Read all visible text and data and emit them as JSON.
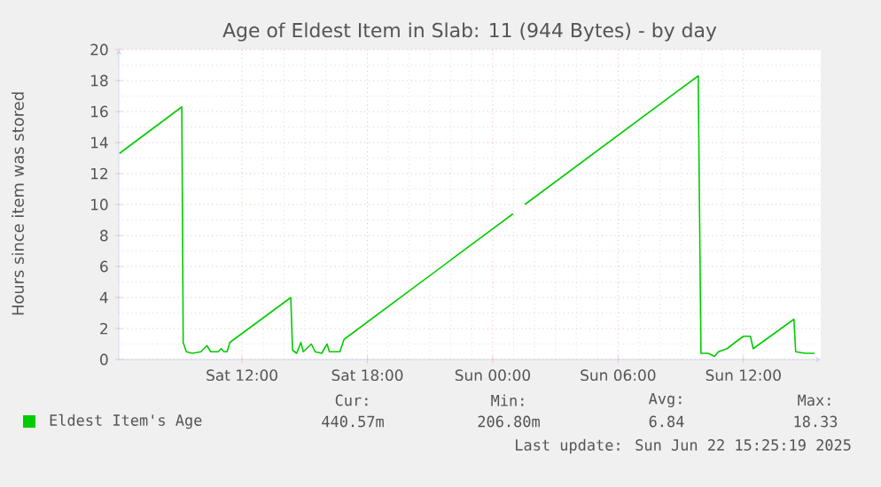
{
  "chart_data": {
    "type": "line",
    "title": "Age of Eldest Item in Slab: 11 (944 Bytes) - by day",
    "ylabel": "Hours since item was stored",
    "xlim": [
      "2025-06-21T06:06",
      "2025-06-22T15:42"
    ],
    "ylim": [
      0,
      20
    ],
    "xticks": [
      {
        "value": "2025-06-21T12:00",
        "label": "Sat 12:00"
      },
      {
        "value": "2025-06-21T18:00",
        "label": "Sat 18:00"
      },
      {
        "value": "2025-06-22T00:00",
        "label": "Sun 00:00"
      },
      {
        "value": "2025-06-22T06:00",
        "label": "Sun 06:00"
      },
      {
        "value": "2025-06-22T12:00",
        "label": "Sun 12:00"
      }
    ],
    "yticks": [
      0,
      2,
      4,
      6,
      8,
      10,
      12,
      14,
      16,
      18,
      20
    ],
    "grid": true,
    "legend": "bottom left",
    "marker": "none",
    "line_style": "solid",
    "series": [
      {
        "name": "Eldest Item's Age",
        "color": "#00cc00",
        "x": [
          "2025-06-21T06:08",
          "2025-06-21T09:07",
          "2025-06-21T09:11",
          "2025-06-21T09:20",
          "2025-06-21T09:37",
          "2025-06-21T10:02",
          "2025-06-21T10:19",
          "2025-06-21T10:30",
          "2025-06-21T10:52",
          "2025-06-21T11:00",
          "2025-06-21T11:08",
          "2025-06-21T11:17",
          "2025-06-21T11:25",
          "2025-06-21T14:20",
          "2025-06-21T14:25",
          "2025-06-21T14:37",
          "2025-06-21T14:49",
          "2025-06-21T14:56",
          "2025-06-21T15:19",
          "2025-06-21T15:30",
          "2025-06-21T15:49",
          "2025-06-21T16:04",
          "2025-06-21T16:11",
          "2025-06-21T16:41",
          "2025-06-21T16:53",
          "2025-06-22T00:58",
          "2025-06-22T01:12",
          "2025-06-22T01:32",
          "2025-06-22T09:50",
          "2025-06-22T09:58",
          "2025-06-22T10:19",
          "2025-06-22T10:37",
          "2025-06-22T10:48",
          "2025-06-22T11:13",
          "2025-06-22T11:30",
          "2025-06-22T12:00",
          "2025-06-22T12:20",
          "2025-06-22T12:28",
          "2025-06-22T14:25",
          "2025-06-22T14:30",
          "2025-06-22T14:58",
          "2025-06-22T15:24"
        ],
        "values": [
          13.3,
          16.3,
          1.1,
          0.5,
          0.4,
          0.5,
          0.9,
          0.5,
          0.5,
          0.7,
          0.5,
          0.5,
          1.1,
          4.0,
          0.6,
          0.4,
          1.1,
          0.5,
          1.0,
          0.5,
          0.4,
          1.0,
          0.5,
          0.5,
          1.3,
          9.4,
          null,
          10.0,
          18.3,
          0.4,
          0.4,
          0.2,
          0.5,
          0.7,
          1.0,
          1.5,
          1.5,
          0.7,
          2.6,
          0.5,
          0.4,
          0.4
        ]
      }
    ],
    "annotations": [
      "Cur:",
      "440.57m",
      "Min:",
      "206.80m",
      "Avg:",
      "6.84",
      "Max:",
      "18.33",
      "Last update: Sun Jun 22 15:25:19 2025"
    ]
  }
}
